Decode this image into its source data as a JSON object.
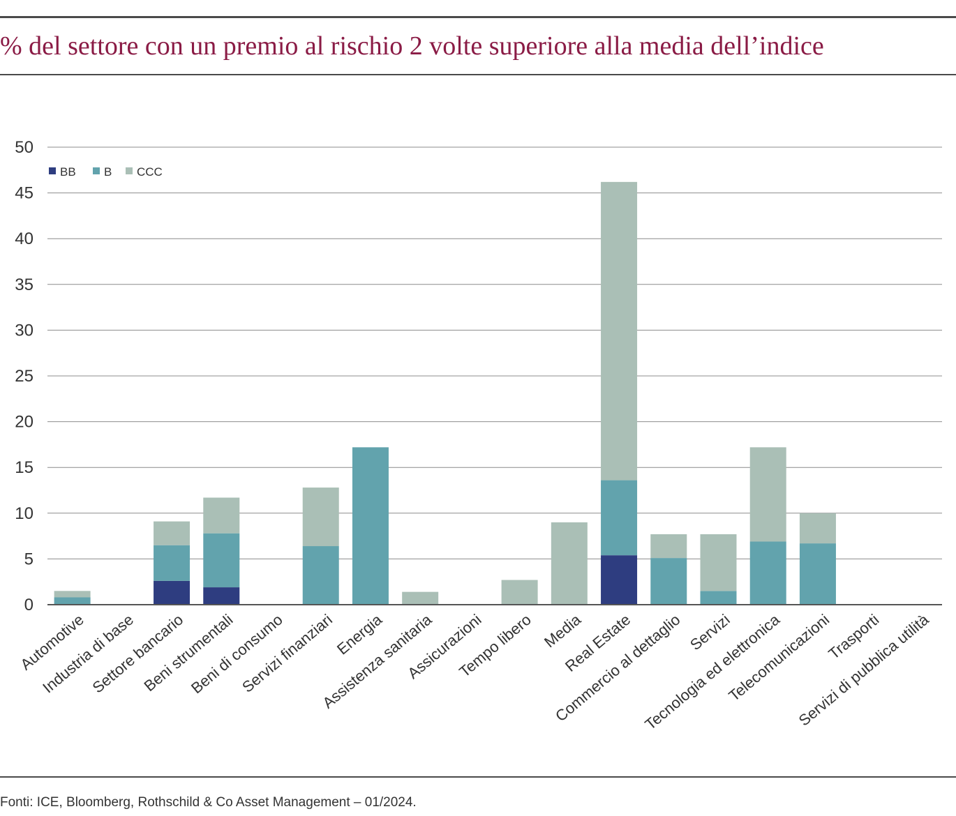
{
  "title": "% del settore con un premio al rischio 2 volte superiore alla media dell’indice",
  "source": "Fonti: ICE, Bloomberg, Rothschild & Co Asset Management – 01/2024.",
  "chart_data": {
    "type": "bar",
    "stacked": true,
    "title": "% del settore con un premio al rischio 2 volte superiore alla media dell’indice",
    "xlabel": "",
    "ylabel": "",
    "ylim": [
      0,
      50
    ],
    "yticks": [
      0,
      5,
      10,
      15,
      20,
      25,
      30,
      35,
      40,
      45,
      50
    ],
    "grid": true,
    "legend_position": "top-left",
    "categories": [
      "Automotive",
      "Industria di base",
      "Settore bancario",
      "Beni strumentali",
      "Beni di consumo",
      "Servizi finanziari",
      "Energia",
      "Assistenza sanitaria",
      "Assicurazioni",
      "Tempo libero",
      "Media",
      "Real Estate",
      "Commercio al dettaglio",
      "Servizi",
      "Tecnologia ed elettronica",
      "Telecomunicazioni",
      "Trasporti",
      "Servizi di pubblica utilità"
    ],
    "series": [
      {
        "name": "BB",
        "color": "#2e3d80",
        "values": [
          0,
          0,
          2.6,
          1.9,
          0,
          0,
          0,
          0,
          0,
          0,
          0,
          5.4,
          0,
          0,
          0,
          0,
          0,
          0
        ]
      },
      {
        "name": "B",
        "color": "#62a3ad",
        "values": [
          0.8,
          0,
          3.9,
          5.9,
          0,
          6.4,
          17.2,
          0,
          0,
          0,
          0,
          8.2,
          5.1,
          1.5,
          6.9,
          6.7,
          0,
          0
        ]
      },
      {
        "name": "CCC",
        "color": "#aabfb6",
        "values": [
          0.7,
          0,
          2.6,
          3.9,
          0,
          6.4,
          0,
          1.4,
          0,
          2.7,
          9.0,
          32.6,
          2.6,
          6.2,
          10.3,
          3.3,
          0,
          0
        ]
      }
    ]
  }
}
